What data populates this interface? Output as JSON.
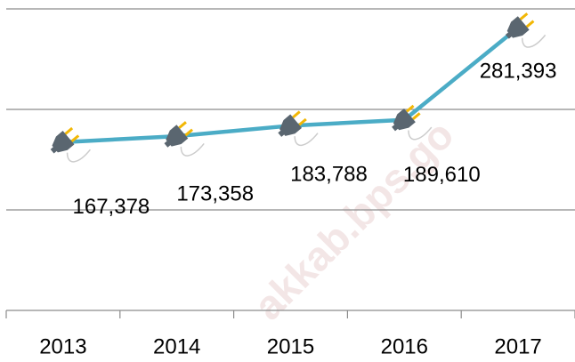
{
  "chart_data": {
    "type": "line",
    "categories": [
      "2013",
      "2014",
      "2015",
      "2016",
      "2017"
    ],
    "series": [
      {
        "name": null,
        "color": "#4bacc6",
        "values": [
          167378,
          173358,
          183788,
          189610,
          281393
        ],
        "value_labels": [
          "167,378",
          "173,358",
          "183,788",
          "189,610",
          "281,393"
        ]
      }
    ],
    "ylim": [
      0,
      300000
    ],
    "yticks": [
      0,
      100000,
      200000,
      300000
    ],
    "grid": true,
    "watermark": "akkab.bps.go"
  }
}
